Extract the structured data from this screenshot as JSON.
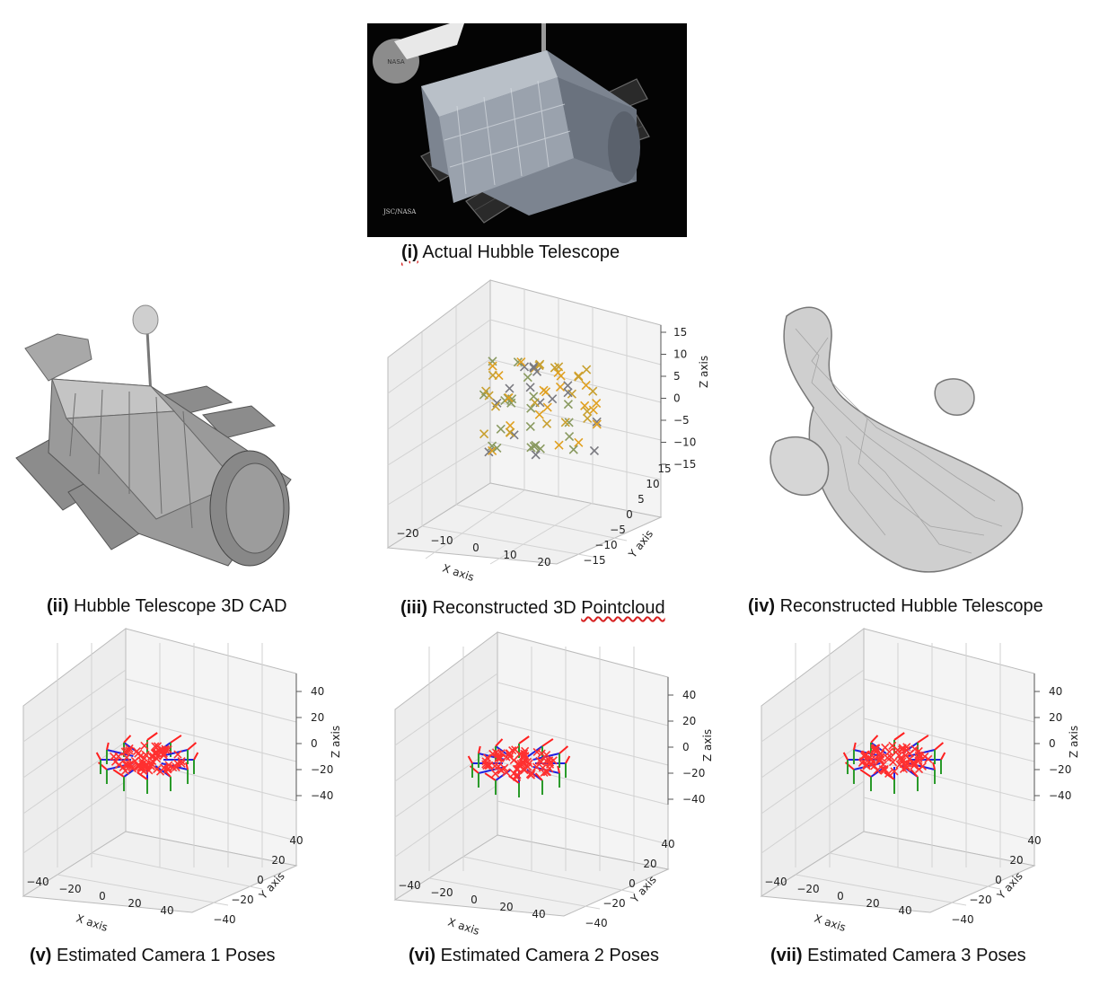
{
  "figure": {
    "captions": [
      {
        "num": "(i)",
        "text": "Actual Hubble Telescope"
      },
      {
        "num": "(ii)",
        "text": "Hubble Telescope 3D CAD"
      },
      {
        "num": "(iii)",
        "text_a": "Reconstructed 3D",
        "text_b": "Pointcloud"
      },
      {
        "num": "(iv)",
        "text": "Reconstructed Hubble Telescope"
      },
      {
        "num": "(v)",
        "text": "Estimated Camera 1 Poses"
      },
      {
        "num": "(vi)",
        "text": "Estimated Camera 2 Poses"
      },
      {
        "num": "(vii)",
        "text": "Estimated Camera 3 Poses"
      }
    ],
    "photo": {
      "badge": "NASA",
      "credit": "JSC/NASA"
    }
  },
  "chart_data": [
    {
      "type": "scatter",
      "panel": "(iii)",
      "xlabel": "X axis",
      "ylabel": "Y axis",
      "zlabel": "Z axis",
      "xticks": [
        "−20",
        "−10",
        "0",
        "10",
        "20"
      ],
      "yticks": [
        "−15",
        "−10",
        "−5",
        "0",
        "5",
        "10",
        "15"
      ],
      "zticks": [
        "15",
        "10",
        "5",
        "0",
        "−5",
        "−10",
        "−15"
      ],
      "marker": "x",
      "colors": [
        "#e0a020",
        "#c8a030",
        "#8a9a60",
        "#7a7a80"
      ]
    },
    {
      "type": "scatter",
      "panel": "(v)",
      "xlabel": "X axis",
      "ylabel": "Y axis",
      "zlabel": "Z axis",
      "xticks": [
        "−40",
        "−20",
        "0",
        "20",
        "40"
      ],
      "yticks": [
        "40",
        "20",
        "0",
        "−20",
        "−40"
      ],
      "zticks": [
        "40",
        "20",
        "0",
        "−20",
        "−40"
      ],
      "point_color": "#ff3030",
      "camera_axes_colors": [
        "#ff2020",
        "#2a9a2a",
        "#2020e0"
      ]
    },
    {
      "type": "scatter",
      "panel": "(vi)",
      "xlabel": "X axis",
      "ylabel": "Y axis",
      "zlabel": "Z axis",
      "xticks": [
        "−40",
        "−20",
        "0",
        "20",
        "40"
      ],
      "yticks": [
        "40",
        "20",
        "0",
        "−20",
        "−40"
      ],
      "zticks": [
        "40",
        "20",
        "0",
        "−20",
        "−40"
      ],
      "point_color": "#ff3030",
      "camera_axes_colors": [
        "#ff2020",
        "#2a9a2a",
        "#2020e0"
      ]
    },
    {
      "type": "scatter",
      "panel": "(vii)",
      "xlabel": "X axis",
      "ylabel": "Y axis",
      "zlabel": "Z axis",
      "xticks": [
        "−40",
        "−20",
        "0",
        "20",
        "40"
      ],
      "yticks": [
        "40",
        "20",
        "0",
        "−20",
        "−40"
      ],
      "zticks": [
        "40",
        "20",
        "0",
        "−20",
        "−40"
      ],
      "point_color": "#ff3030",
      "camera_axes_colors": [
        "#ff2020",
        "#2a9a2a",
        "#2020e0"
      ]
    }
  ]
}
